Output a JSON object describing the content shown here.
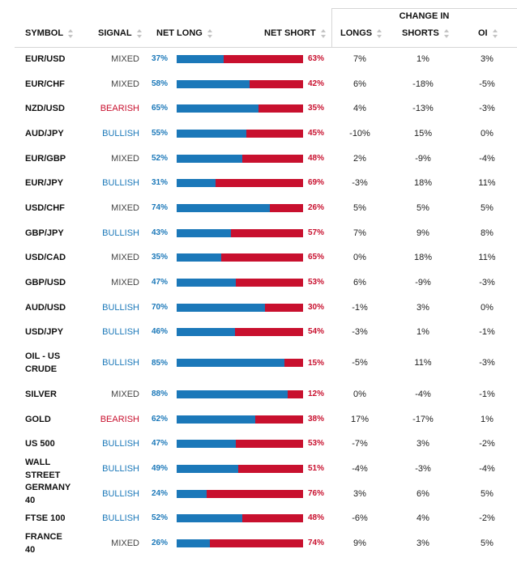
{
  "header": {
    "change_in": "CHANGE IN",
    "symbol": "SYMBOL",
    "signal": "SIGNAL",
    "net_long": "NET LONG",
    "net_short": "NET SHORT",
    "longs": "LONGS",
    "shorts": "SHORTS",
    "oi": "OI"
  },
  "colors": {
    "long": "#1b78b9",
    "short": "#c8102e"
  },
  "rows": [
    {
      "symbol": "EUR/USD",
      "signal": "MIXED",
      "long": "37%",
      "long_value": 37,
      "short": "63%",
      "ch_longs": "7%",
      "ch_shorts": "1%",
      "ch_oi": "3%"
    },
    {
      "symbol": "EUR/CHF",
      "signal": "MIXED",
      "long": "58%",
      "long_value": 58,
      "short": "42%",
      "ch_longs": "6%",
      "ch_shorts": "-18%",
      "ch_oi": "-5%"
    },
    {
      "symbol": "NZD/USD",
      "signal": "BEARISH",
      "long": "65%",
      "long_value": 65,
      "short": "35%",
      "ch_longs": "4%",
      "ch_shorts": "-13%",
      "ch_oi": "-3%"
    },
    {
      "symbol": "AUD/JPY",
      "signal": "BULLISH",
      "long": "55%",
      "long_value": 55,
      "short": "45%",
      "ch_longs": "-10%",
      "ch_shorts": "15%",
      "ch_oi": "0%"
    },
    {
      "symbol": "EUR/GBP",
      "signal": "MIXED",
      "long": "52%",
      "long_value": 52,
      "short": "48%",
      "ch_longs": "2%",
      "ch_shorts": "-9%",
      "ch_oi": "-4%"
    },
    {
      "symbol": "EUR/JPY",
      "signal": "BULLISH",
      "long": "31%",
      "long_value": 31,
      "short": "69%",
      "ch_longs": "-3%",
      "ch_shorts": "18%",
      "ch_oi": "11%"
    },
    {
      "symbol": "USD/CHF",
      "signal": "MIXED",
      "long": "74%",
      "long_value": 74,
      "short": "26%",
      "ch_longs": "5%",
      "ch_shorts": "5%",
      "ch_oi": "5%"
    },
    {
      "symbol": "GBP/JPY",
      "signal": "BULLISH",
      "long": "43%",
      "long_value": 43,
      "short": "57%",
      "ch_longs": "7%",
      "ch_shorts": "9%",
      "ch_oi": "8%"
    },
    {
      "symbol": "USD/CAD",
      "signal": "MIXED",
      "long": "35%",
      "long_value": 35,
      "short": "65%",
      "ch_longs": "0%",
      "ch_shorts": "18%",
      "ch_oi": "11%"
    },
    {
      "symbol": "GBP/USD",
      "signal": "MIXED",
      "long": "47%",
      "long_value": 47,
      "short": "53%",
      "ch_longs": "6%",
      "ch_shorts": "-9%",
      "ch_oi": "-3%"
    },
    {
      "symbol": "AUD/USD",
      "signal": "BULLISH",
      "long": "70%",
      "long_value": 70,
      "short": "30%",
      "ch_longs": "-1%",
      "ch_shorts": "3%",
      "ch_oi": "0%"
    },
    {
      "symbol": "USD/JPY",
      "signal": "BULLISH",
      "long": "46%",
      "long_value": 46,
      "short": "54%",
      "ch_longs": "-3%",
      "ch_shorts": "1%",
      "ch_oi": "-1%"
    },
    {
      "symbol": "OIL - US CRUDE",
      "signal": "BULLISH",
      "long": "85%",
      "long_value": 85,
      "short": "15%",
      "ch_longs": "-5%",
      "ch_shorts": "11%",
      "ch_oi": "-3%"
    },
    {
      "symbol": "SILVER",
      "signal": "MIXED",
      "long": "88%",
      "long_value": 88,
      "short": "12%",
      "ch_longs": "0%",
      "ch_shorts": "-4%",
      "ch_oi": "-1%"
    },
    {
      "symbol": "GOLD",
      "signal": "BEARISH",
      "long": "62%",
      "long_value": 62,
      "short": "38%",
      "ch_longs": "17%",
      "ch_shorts": "-17%",
      "ch_oi": "1%"
    },
    {
      "symbol": "US 500",
      "signal": "BULLISH",
      "long": "47%",
      "long_value": 47,
      "short": "53%",
      "ch_longs": "-7%",
      "ch_shorts": "3%",
      "ch_oi": "-2%"
    },
    {
      "symbol": "WALL STREET",
      "signal": "BULLISH",
      "long": "49%",
      "long_value": 49,
      "short": "51%",
      "ch_longs": "-4%",
      "ch_shorts": "-3%",
      "ch_oi": "-4%"
    },
    {
      "symbol": "GERMANY 40",
      "signal": "BULLISH",
      "long": "24%",
      "long_value": 24,
      "short": "76%",
      "ch_longs": "3%",
      "ch_shorts": "6%",
      "ch_oi": "5%"
    },
    {
      "symbol": "FTSE 100",
      "signal": "BULLISH",
      "long": "52%",
      "long_value": 52,
      "short": "48%",
      "ch_longs": "-6%",
      "ch_shorts": "4%",
      "ch_oi": "-2%"
    },
    {
      "symbol": "FRANCE 40",
      "signal": "MIXED",
      "long": "26%",
      "long_value": 26,
      "short": "74%",
      "ch_longs": "9%",
      "ch_shorts": "3%",
      "ch_oi": "5%"
    }
  ]
}
